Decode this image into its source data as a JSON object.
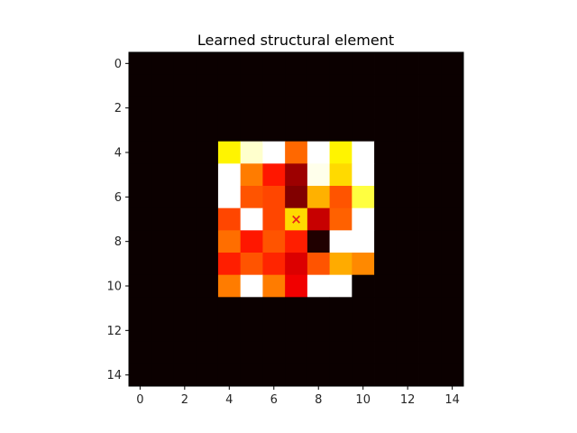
{
  "chart_data": {
    "type": "heatmap",
    "title": "Learned structural element",
    "xlabel": "",
    "ylabel": "",
    "colormap": "hot",
    "value_range": [
      0,
      1
    ],
    "xlim": [
      -0.5,
      14.5
    ],
    "ylim": [
      14.5,
      -0.5
    ],
    "x_ticks": [
      0,
      2,
      4,
      6,
      8,
      10,
      12,
      14
    ],
    "y_ticks": [
      0,
      2,
      4,
      6,
      8,
      10,
      12,
      14
    ],
    "grid": false,
    "origin_marker": {
      "symbol": "×",
      "x": 7,
      "y": 7,
      "color": "#e8261a"
    },
    "values": [
      [
        0,
        0,
        0,
        0,
        0,
        0,
        0,
        0,
        0,
        0,
        0,
        0,
        0,
        0,
        0
      ],
      [
        0,
        0,
        0,
        0,
        0,
        0,
        0,
        0,
        0,
        0,
        0,
        0,
        0,
        0,
        0
      ],
      [
        0,
        0,
        0,
        0,
        0,
        0,
        0,
        0,
        0,
        0,
        0,
        0,
        0,
        0,
        0
      ],
      [
        0,
        0,
        0,
        0,
        0,
        0,
        0,
        0,
        0,
        0,
        0,
        0,
        0,
        0,
        0
      ],
      [
        0,
        0,
        0,
        0,
        0.73,
        0.95,
        1.0,
        0.52,
        1.0,
        0.73,
        1.0,
        0,
        0,
        0,
        0
      ],
      [
        0,
        0,
        0,
        0,
        1.0,
        0.55,
        0.4,
        0.21,
        0.98,
        0.69,
        1.0,
        0,
        0,
        0,
        0
      ],
      [
        0,
        0,
        0,
        0,
        1.0,
        0.49,
        0.47,
        0.17,
        0.63,
        0.49,
        0.81,
        0,
        0,
        0,
        0
      ],
      [
        0,
        0,
        0,
        0,
        0.47,
        1.0,
        0.47,
        0.69,
        0.27,
        0.51,
        1.0,
        0,
        0,
        0,
        0
      ],
      [
        0,
        0,
        0,
        0,
        0.53,
        0.4,
        0.49,
        0.41,
        0.03,
        1.0,
        1.0,
        0,
        0,
        0,
        0
      ],
      [
        0,
        0,
        0,
        0,
        0.41,
        0.49,
        0.42,
        0.3,
        0.49,
        0.62,
        0.57,
        0,
        0,
        0,
        0
      ],
      [
        0,
        0,
        0,
        0,
        0.55,
        1.0,
        0.55,
        0.33,
        1.0,
        1.0,
        0,
        0,
        0,
        0,
        0
      ],
      [
        0,
        0,
        0,
        0,
        0,
        0,
        0,
        0,
        0,
        0,
        0,
        0,
        0,
        0,
        0
      ],
      [
        0,
        0,
        0,
        0,
        0,
        0,
        0,
        0,
        0,
        0,
        0,
        0,
        0,
        0,
        0
      ],
      [
        0,
        0,
        0,
        0,
        0,
        0,
        0,
        0,
        0,
        0,
        0,
        0,
        0,
        0,
        0
      ],
      [
        0,
        0,
        0,
        0,
        0,
        0,
        0,
        0,
        0,
        0,
        0,
        0,
        0,
        0,
        0
      ]
    ]
  }
}
